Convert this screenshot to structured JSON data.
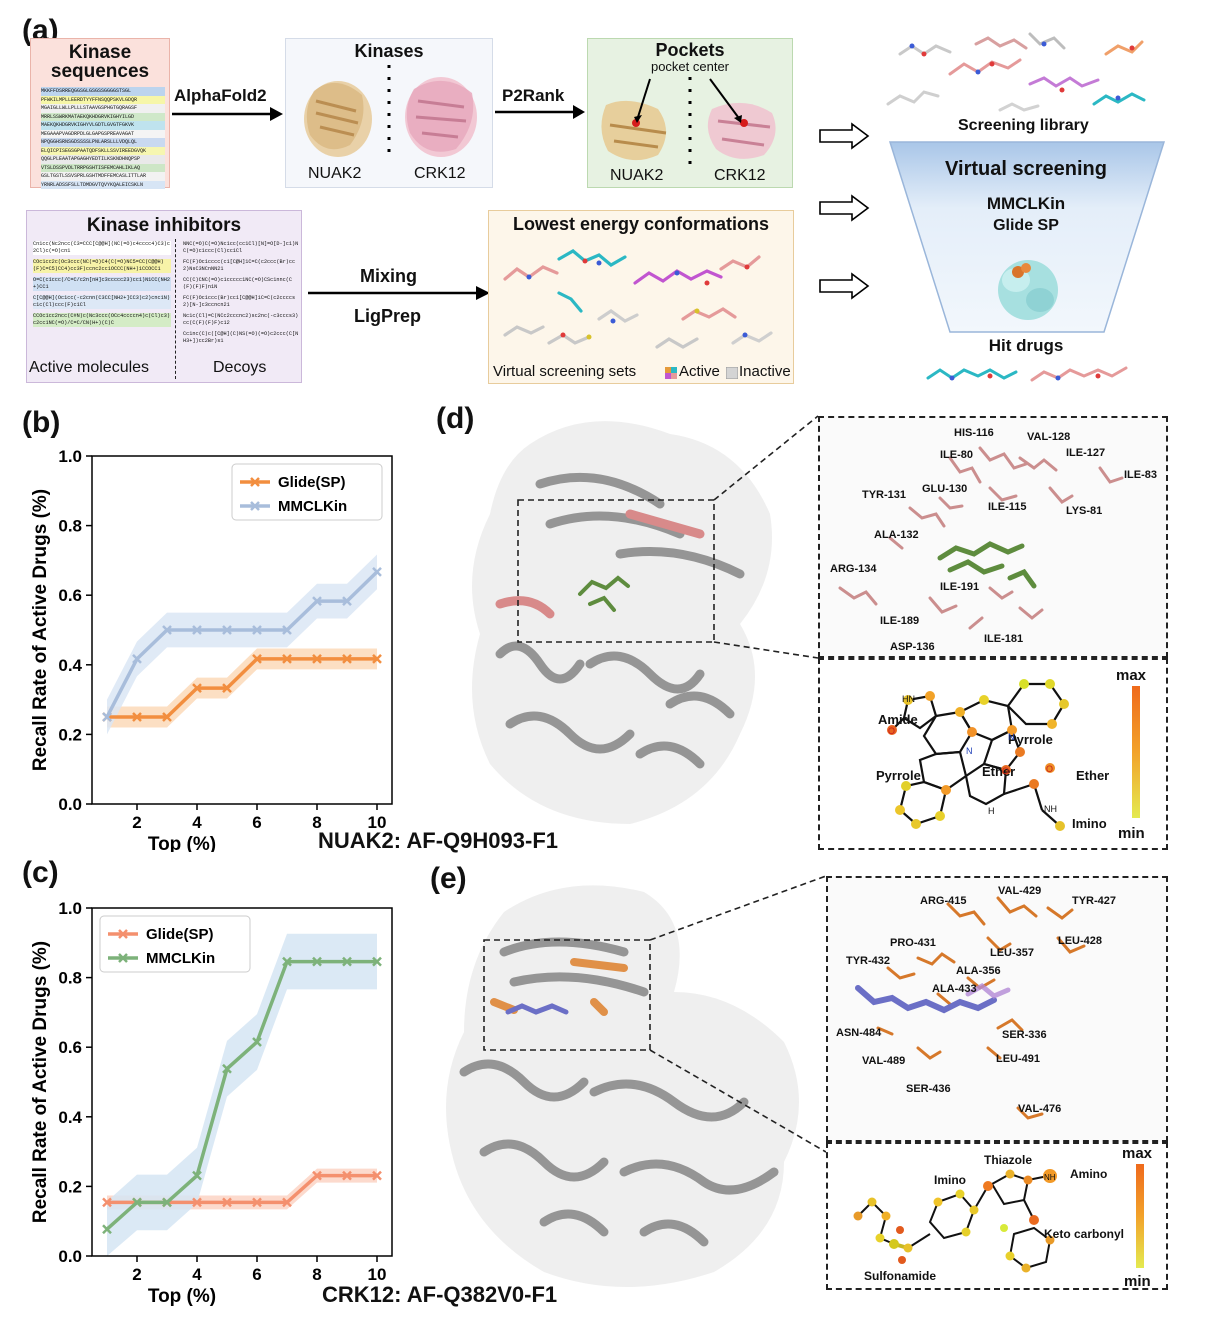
{
  "panel_a": {
    "letter": "(a)",
    "kinase_sequences": {
      "title_line1": "Kinase",
      "title_line2": "sequences",
      "lines": [
        "MKKFFDSRREQGGSGLGSGSSGGGGSTSGL",
        "PFWKILMPLLEERDTYYFFNSQQPSKVLGDQR",
        "MGAIGLLWLLPLLLSTAAVGSPHGTGQRAGSF",
        "MRRLSSWRKMATAEKQKHDGRVKIGHYILGD",
        "MAEKQKHDGRVKIGHYVLGDTLGVGTFGKVK",
        "MEGAAAPVAGDRPDLGLGAPGSPREAVAGAT",
        "NPQGGHSRNSGDSSSSLPNLARSLLLVDQLQL",
        "ELQICPISEGSGPAATQDFSKLLSSVIREEDGVQK",
        "QQGLPLEAATAPGAGHYEDTILKSKNDHNQPSP",
        "VTSLDSSPVDLTRRPGSHTISFEMCAHLIKLAQ",
        "GSLTGSTLSSVSPRLGSHTMDFFEMCASLITTLAR",
        "YRNRLADSSFSLLTDMDGVTQVYKQALEICSKLN"
      ]
    },
    "alphafold_label": "AlphaFold2",
    "kinases": {
      "title": "Kinases",
      "left_label": "NUAK2",
      "right_label": "CRK12"
    },
    "p2rank_label": "P2Rank",
    "pockets": {
      "title": "Pockets",
      "subtitle": "pocket center",
      "left_label": "NUAK2",
      "right_label": "CRK12"
    },
    "screening_library_label": "Screening library",
    "funnel": {
      "title": "Virtual screening",
      "method1": "MMCLKin",
      "method2": "Glide SP"
    },
    "hit_drugs_label": "Hit drugs",
    "inhibitors": {
      "title": "Kinase inhibitors",
      "active_label": "Active molecules",
      "decoy_label": "Decoys",
      "active_smiles": [
        "Cn1cc(Nc2ncc(C3=CCC[C@@H](NC(=O)c4cccc4)C3)c2Cl)c(=O)cn1",
        "COc1cc2c(Oc3ccc(NC(=O)C4(C(=O)NC5=CC(C@@H)(F)C=C5)CC4)cc3F)ccnc2cc1OCCC(NH+)1CCOCC1",
        "O=C(c1ccc(/C=C/c2n[nH]c3ccccc23)cc1)N1CC(NH2+)CC1",
        "C[C@@H](Oc1cc(-c2cnn(C3CC[NH2+]CC3)c2)cnc1N)c1c(Cl)ccc(F)c1Cl",
        "CCOc1cc2ncc(C#N)c(Nc3ccc(OCc4ccccn4)c(Cl)c3)c2cc1NC(=O)/C=C/CN(H+)(C)C"
      ],
      "decoy_smiles": [
        "NNC(=O)C(=O)Nc1cc(cc1Cl)[N]=O[D-]c1)NC(=O)c1ccc(Cl)cc1Cl",
        "FC(F)Oc1cccc(c1[C@H]1C=C(c2ccc(Br)cc2)NsC3NCnNN21",
        "CC(C)CNC(=O)c1ccccc1NC(=O)CSc1nnc(C(F)(F)F)n1N",
        "FC(F)Oc1ccc(Br)cc1[C@@H]1C=C(c2ccccs2)[N-]c3ccncn21",
        "Nc1c(Cl)=C(NCc2cccnc2)sc2nc(-c3cccs3)cc(C(F)(F)F)c12",
        "Cc1nc(C)c([C@H](C)NS(=O)(=O)c2ccc(C[NH3+])cc2Br)s1"
      ]
    },
    "mixing_label": "Mixing",
    "ligprep_label": "LigPrep",
    "lowest_energy": {
      "title": "Lowest energy conformations",
      "footer": "Virtual screening sets",
      "legend_active": "Active",
      "legend_inactive": "Inactive"
    }
  },
  "panel_b": {
    "letter": "(b)",
    "chart_data": {
      "type": "line",
      "xlabel": "Top (%)",
      "ylabel": "Recall Rate of Active Drugs (%)",
      "xlim": [
        0.5,
        10.5
      ],
      "ylim": [
        0.0,
        1.0
      ],
      "xticks": [
        2,
        4,
        6,
        8,
        10
      ],
      "yticks": [
        "0.0",
        "0.2",
        "0.4",
        "0.6",
        "0.8",
        "1.0"
      ],
      "legend_position": "top-right",
      "x": [
        1,
        2,
        3,
        4,
        5,
        6,
        7,
        8,
        9,
        10
      ],
      "series": [
        {
          "name": "Glide(SP)",
          "color": "#f28e3f",
          "band": "#fbd9b8",
          "values": [
            0.25,
            0.25,
            0.25,
            0.333,
            0.333,
            0.417,
            0.417,
            0.417,
            0.417,
            0.417
          ],
          "band_width": 0.03
        },
        {
          "name": "MMCLKin",
          "color": "#a8bddb",
          "band": "#dae6f5",
          "values": [
            0.25,
            0.417,
            0.5,
            0.5,
            0.5,
            0.5,
            0.5,
            0.583,
            0.583,
            0.667
          ],
          "band_width": 0.05
        }
      ]
    },
    "caption": "NUAK2: AF-Q9H093-F1"
  },
  "panel_c": {
    "letter": "(c)",
    "chart_data": {
      "type": "line",
      "xlabel": "Top (%)",
      "ylabel": "Recall Rate of Active Drugs (%)",
      "xlim": [
        0.5,
        10.5
      ],
      "ylim": [
        0.0,
        1.0
      ],
      "xticks": [
        2,
        4,
        6,
        8,
        10
      ],
      "yticks": [
        "0.0",
        "0.2",
        "0.4",
        "0.6",
        "0.8",
        "1.0"
      ],
      "legend_position": "top-left",
      "x": [
        1,
        2,
        3,
        4,
        5,
        6,
        7,
        8,
        9,
        10
      ],
      "series": [
        {
          "name": "Glide(SP)",
          "color": "#f4906e",
          "band": "#fcd3c4",
          "values": [
            0.154,
            0.154,
            0.154,
            0.154,
            0.154,
            0.154,
            0.154,
            0.231,
            0.231,
            0.231
          ],
          "band_width": 0.02
        },
        {
          "name": "MMCLKin",
          "color": "#7db27a",
          "band": "#d5e5f3",
          "values": [
            0.077,
            0.154,
            0.154,
            0.231,
            0.538,
            0.615,
            0.846,
            0.846,
            0.846,
            0.846
          ],
          "band_width": 0.08
        }
      ]
    },
    "caption": "CRK12: AF-Q382V0-F1"
  },
  "panel_d": {
    "letter": "(d)",
    "residues": [
      "HIS-116",
      "VAL-128",
      "ILE-80",
      "ILE-127",
      "ILE-83",
      "TYR-131",
      "GLU-130",
      "ILE-115",
      "LYS-81",
      "ALA-132",
      "ARG-134",
      "ILE-191",
      "ILE-189",
      "ILE-181",
      "ASP-136"
    ],
    "molecule_labels": [
      "Amide",
      "Pyrrole",
      "Pyrrole",
      "Ether",
      "Ether",
      "Imino",
      "HN",
      "N",
      "N",
      "O",
      "O",
      "O",
      "H",
      "NH"
    ],
    "scale_max": "max",
    "scale_min": "min"
  },
  "panel_e": {
    "letter": "(e)",
    "residues": [
      "ARG-415",
      "VAL-429",
      "TYR-427",
      "PRO-431",
      "LEU-357",
      "LEU-428",
      "TYR-432",
      "ALA-356",
      "ALA-433",
      "ASN-484",
      "SER-336",
      "VAL-489",
      "LEU-491",
      "SER-436",
      "VAL-476"
    ],
    "molecule_labels": [
      "Thiazole",
      "Imino",
      "Amino",
      "Keto carbonyl",
      "Sulfonamide",
      "NH"
    ],
    "scale_max": "max",
    "scale_min": "min"
  }
}
